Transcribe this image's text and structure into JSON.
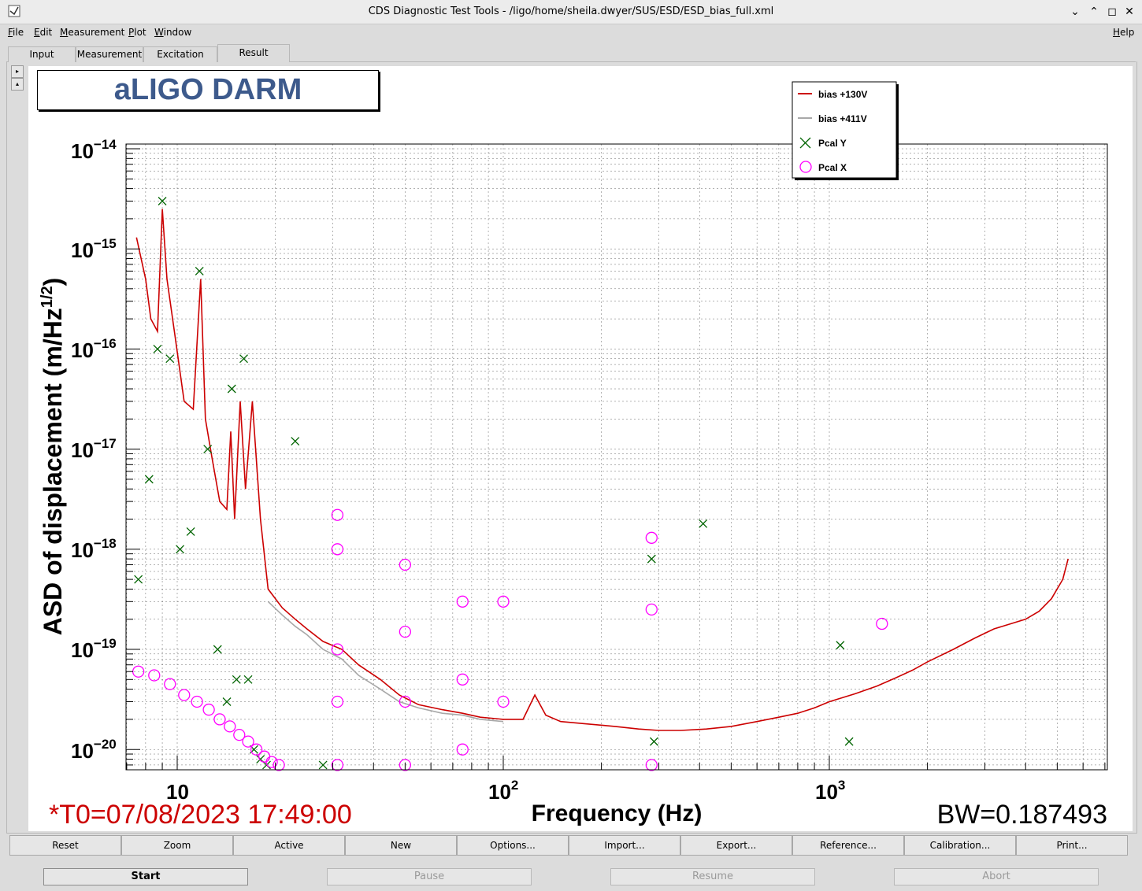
{
  "window": {
    "title": "CDS Diagnostic Test Tools - /ligo/home/sheila.dwyer/SUS/ESD/ESD_bias_full.xml"
  },
  "menu": [
    "File",
    "Edit",
    "Measurement",
    "Plot",
    "Window"
  ],
  "menu_help": "Help",
  "tabs": [
    "Input",
    "Measurement",
    "Excitation",
    "Result"
  ],
  "active_tab": "Result",
  "plot": {
    "title_box": "aLIGO DARM",
    "xlabel": "Frequency (Hz)",
    "ylabel": "ASD of displacement (m/Hz",
    "ylabel_sup": "1/2",
    "ylabel_close": ")",
    "t0": "*T0=07/08/2023 17:49:00",
    "bw": "BW=0.187493",
    "y_tick_labels": [
      "10",
      "10",
      "10",
      "10",
      "10",
      "10",
      "10"
    ],
    "y_tick_exps": [
      "−14",
      "−15",
      "−16",
      "−17",
      "−18",
      "−19",
      "−20"
    ],
    "x_tick_labels": [
      "10",
      "10",
      "10"
    ],
    "x_tick_exps": [
      "",
      "2",
      "3"
    ],
    "legend": [
      {
        "label": "bias +130V",
        "color": "#cc0000",
        "marker": "line"
      },
      {
        "label": "bias +411V",
        "color": "#a8a8a8",
        "marker": "line"
      },
      {
        "label": "Pcal Y",
        "color": "#006400",
        "marker": "x"
      },
      {
        "label": "Pcal X",
        "color": "#ff00ff",
        "marker": "circle"
      }
    ]
  },
  "chart_data": {
    "type": "line",
    "xlabel": "Frequency (Hz)",
    "ylabel": "ASD of displacement (m/Hz^1/2)",
    "xscale": "log",
    "yscale": "log",
    "xlim": [
      7.5,
      5500
    ],
    "ylim": [
      6e-21,
      1e-14
    ],
    "grid": true,
    "legend_position": "top-center",
    "series": [
      {
        "name": "bias +130V",
        "color": "#cc0000",
        "x": [
          7.5,
          8,
          8.3,
          8.7,
          9.0,
          9.3,
          9.8,
          10.5,
          11.2,
          11.8,
          12.2,
          12.8,
          13.5,
          14.2,
          14.6,
          15.0,
          15.6,
          16.2,
          17.0,
          18.0,
          19.0,
          21,
          23,
          25,
          28,
          32,
          36,
          42,
          48,
          55,
          65,
          75,
          85,
          100,
          115,
          125,
          135,
          150,
          180,
          220,
          260,
          300,
          350,
          420,
          500,
          600,
          700,
          800,
          900,
          1000,
          1200,
          1400,
          1600,
          1800,
          2000,
          2400,
          2800,
          3200,
          3600,
          4000,
          4400,
          4800,
          5200,
          5400
        ],
        "y": [
          1.3e-15,
          5e-16,
          2e-16,
          1.5e-16,
          2.5e-15,
          5e-16,
          1.5e-16,
          3e-17,
          2.5e-17,
          5e-16,
          2e-17,
          8e-18,
          3e-18,
          2.5e-18,
          1.5e-17,
          2e-18,
          3e-17,
          4e-18,
          3e-17,
          2e-18,
          4e-19,
          2.6e-19,
          2e-19,
          1.6e-19,
          1.2e-19,
          1e-19,
          7e-20,
          5e-20,
          3.5e-20,
          2.8e-20,
          2.5e-20,
          2.3e-20,
          2.1e-20,
          2e-20,
          2e-20,
          3.5e-20,
          2.2e-20,
          1.9e-20,
          1.8e-20,
          1.7e-20,
          1.6e-20,
          1.55e-20,
          1.55e-20,
          1.6e-20,
          1.7e-20,
          1.9e-20,
          2.1e-20,
          2.3e-20,
          2.6e-20,
          3e-20,
          3.6e-20,
          4.3e-20,
          5.2e-20,
          6.2e-20,
          7.5e-20,
          1e-19,
          1.3e-19,
          1.6e-19,
          1.8e-19,
          2e-19,
          2.4e-19,
          3.2e-19,
          5e-19,
          8e-19
        ]
      },
      {
        "name": "bias +411V",
        "color": "#a8a8a8",
        "x": [
          19,
          21,
          23,
          25,
          28,
          32,
          36,
          42,
          48,
          55,
          65,
          75,
          85,
          100
        ],
        "y": [
          3e-19,
          2.2e-19,
          1.7e-19,
          1.4e-19,
          1e-19,
          8e-20,
          5.5e-20,
          4e-20,
          3e-20,
          2.6e-20,
          2.3e-20,
          2.2e-20,
          2e-20,
          1.9e-20
        ]
      },
      {
        "name": "Pcal Y",
        "color": "#006400",
        "x": [
          7.6,
          8.2,
          8.7,
          9.0,
          9.5,
          10.2,
          11.0,
          11.7,
          12.4,
          13.3,
          14.2,
          14.7,
          15.2,
          16.0,
          16.5,
          17.2,
          18.0,
          18.8,
          23,
          28,
          285,
          290,
          410,
          1080,
          1150
        ],
        "y": [
          5e-19,
          5e-18,
          1e-16,
          3e-15,
          8e-17,
          1e-18,
          1.5e-18,
          6e-16,
          1e-17,
          1e-19,
          3e-20,
          4e-17,
          5e-20,
          8e-17,
          5e-20,
          1e-20,
          8e-21,
          7e-21,
          1.2e-17,
          7e-21,
          8e-19,
          1.2e-20,
          1.8e-18,
          1.1e-19,
          1.2e-20
        ]
      },
      {
        "name": "Pcal X",
        "color": "#ff00ff",
        "x": [
          7.6,
          8.5,
          9.5,
          10.5,
          11.5,
          12.5,
          13.5,
          14.5,
          15.5,
          16.5,
          17.5,
          18.5,
          19.5,
          20.5,
          31,
          31,
          31,
          31,
          31,
          50,
          50,
          50,
          50,
          75,
          75,
          75,
          100,
          100,
          285,
          285,
          285,
          1450
        ],
        "y": [
          6e-20,
          5.5e-20,
          4.5e-20,
          3.5e-20,
          3e-20,
          2.5e-20,
          2e-20,
          1.7e-20,
          1.4e-20,
          1.2e-20,
          1e-20,
          8.5e-21,
          7.5e-21,
          7e-21,
          2.2e-18,
          1e-18,
          1e-19,
          3e-20,
          7e-21,
          7e-19,
          1.5e-19,
          3e-20,
          7e-21,
          3e-19,
          5e-20,
          1e-20,
          3e-19,
          3e-20,
          1.3e-18,
          2.5e-19,
          7e-21,
          1.8e-19
        ]
      }
    ]
  },
  "buttons": [
    "Reset",
    "Zoom",
    "Active",
    "New",
    "Options...",
    "Import...",
    "Export...",
    "Reference...",
    "Calibration...",
    "Print..."
  ],
  "controls": [
    {
      "label": "Start",
      "enabled": true
    },
    {
      "label": "Pause",
      "enabled": false
    },
    {
      "label": "Resume",
      "enabled": false
    },
    {
      "label": "Abort",
      "enabled": false
    }
  ]
}
